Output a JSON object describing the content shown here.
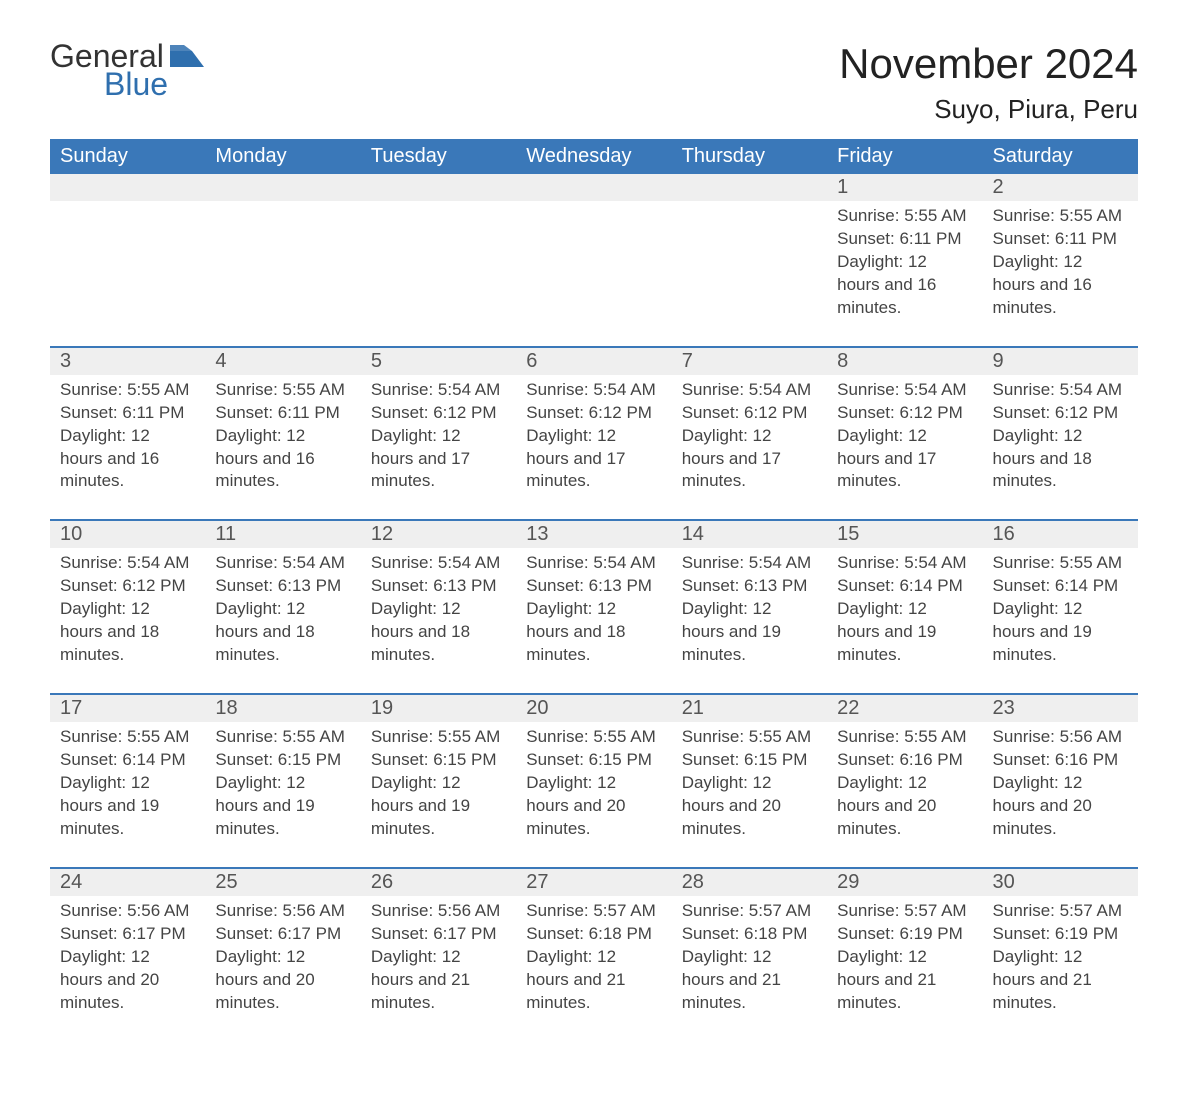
{
  "logo": {
    "word1": "General",
    "word2": "Blue",
    "icon": "flag-icon",
    "icon_color": "#2f6fae"
  },
  "title": {
    "month": "November 2024",
    "location": "Suyo, Piura, Peru"
  },
  "colors": {
    "header_bg": "#3a78b9",
    "header_text": "#ffffff",
    "daynum_bg": "#efefef",
    "row_rule": "#3a78b9",
    "body_text": "#444444",
    "title_text": "#222222"
  },
  "weekdays": [
    "Sunday",
    "Monday",
    "Tuesday",
    "Wednesday",
    "Thursday",
    "Friday",
    "Saturday"
  ],
  "weeks": [
    [
      null,
      null,
      null,
      null,
      null,
      {
        "n": "1",
        "sunrise": "5:55 AM",
        "sunset": "6:11 PM",
        "daylight": "12 hours and 16 minutes."
      },
      {
        "n": "2",
        "sunrise": "5:55 AM",
        "sunset": "6:11 PM",
        "daylight": "12 hours and 16 minutes."
      }
    ],
    [
      {
        "n": "3",
        "sunrise": "5:55 AM",
        "sunset": "6:11 PM",
        "daylight": "12 hours and 16 minutes."
      },
      {
        "n": "4",
        "sunrise": "5:55 AM",
        "sunset": "6:11 PM",
        "daylight": "12 hours and 16 minutes."
      },
      {
        "n": "5",
        "sunrise": "5:54 AM",
        "sunset": "6:12 PM",
        "daylight": "12 hours and 17 minutes."
      },
      {
        "n": "6",
        "sunrise": "5:54 AM",
        "sunset": "6:12 PM",
        "daylight": "12 hours and 17 minutes."
      },
      {
        "n": "7",
        "sunrise": "5:54 AM",
        "sunset": "6:12 PM",
        "daylight": "12 hours and 17 minutes."
      },
      {
        "n": "8",
        "sunrise": "5:54 AM",
        "sunset": "6:12 PM",
        "daylight": "12 hours and 17 minutes."
      },
      {
        "n": "9",
        "sunrise": "5:54 AM",
        "sunset": "6:12 PM",
        "daylight": "12 hours and 18 minutes."
      }
    ],
    [
      {
        "n": "10",
        "sunrise": "5:54 AM",
        "sunset": "6:12 PM",
        "daylight": "12 hours and 18 minutes."
      },
      {
        "n": "11",
        "sunrise": "5:54 AM",
        "sunset": "6:13 PM",
        "daylight": "12 hours and 18 minutes."
      },
      {
        "n": "12",
        "sunrise": "5:54 AM",
        "sunset": "6:13 PM",
        "daylight": "12 hours and 18 minutes."
      },
      {
        "n": "13",
        "sunrise": "5:54 AM",
        "sunset": "6:13 PM",
        "daylight": "12 hours and 18 minutes."
      },
      {
        "n": "14",
        "sunrise": "5:54 AM",
        "sunset": "6:13 PM",
        "daylight": "12 hours and 19 minutes."
      },
      {
        "n": "15",
        "sunrise": "5:54 AM",
        "sunset": "6:14 PM",
        "daylight": "12 hours and 19 minutes."
      },
      {
        "n": "16",
        "sunrise": "5:55 AM",
        "sunset": "6:14 PM",
        "daylight": "12 hours and 19 minutes."
      }
    ],
    [
      {
        "n": "17",
        "sunrise": "5:55 AM",
        "sunset": "6:14 PM",
        "daylight": "12 hours and 19 minutes."
      },
      {
        "n": "18",
        "sunrise": "5:55 AM",
        "sunset": "6:15 PM",
        "daylight": "12 hours and 19 minutes."
      },
      {
        "n": "19",
        "sunrise": "5:55 AM",
        "sunset": "6:15 PM",
        "daylight": "12 hours and 19 minutes."
      },
      {
        "n": "20",
        "sunrise": "5:55 AM",
        "sunset": "6:15 PM",
        "daylight": "12 hours and 20 minutes."
      },
      {
        "n": "21",
        "sunrise": "5:55 AM",
        "sunset": "6:15 PM",
        "daylight": "12 hours and 20 minutes."
      },
      {
        "n": "22",
        "sunrise": "5:55 AM",
        "sunset": "6:16 PM",
        "daylight": "12 hours and 20 minutes."
      },
      {
        "n": "23",
        "sunrise": "5:56 AM",
        "sunset": "6:16 PM",
        "daylight": "12 hours and 20 minutes."
      }
    ],
    [
      {
        "n": "24",
        "sunrise": "5:56 AM",
        "sunset": "6:17 PM",
        "daylight": "12 hours and 20 minutes."
      },
      {
        "n": "25",
        "sunrise": "5:56 AM",
        "sunset": "6:17 PM",
        "daylight": "12 hours and 20 minutes."
      },
      {
        "n": "26",
        "sunrise": "5:56 AM",
        "sunset": "6:17 PM",
        "daylight": "12 hours and 21 minutes."
      },
      {
        "n": "27",
        "sunrise": "5:57 AM",
        "sunset": "6:18 PM",
        "daylight": "12 hours and 21 minutes."
      },
      {
        "n": "28",
        "sunrise": "5:57 AM",
        "sunset": "6:18 PM",
        "daylight": "12 hours and 21 minutes."
      },
      {
        "n": "29",
        "sunrise": "5:57 AM",
        "sunset": "6:19 PM",
        "daylight": "12 hours and 21 minutes."
      },
      {
        "n": "30",
        "sunrise": "5:57 AM",
        "sunset": "6:19 PM",
        "daylight": "12 hours and 21 minutes."
      }
    ]
  ],
  "labels": {
    "sunrise": "Sunrise:",
    "sunset": "Sunset:",
    "daylight": "Daylight:"
  }
}
